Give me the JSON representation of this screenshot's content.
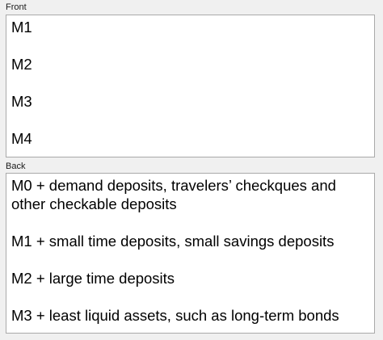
{
  "front": {
    "label": "Front",
    "lines": [
      "M1",
      "M2",
      "M3",
      "M4"
    ]
  },
  "back": {
    "label": "Back",
    "lines": [
      "M0 + demand deposits, travelers’ checkques and",
      "other checkable deposits",
      "M1 + small time deposits, small savings deposits",
      "M2 + large time deposits",
      "M3 + least liquid assets, such as long-term bonds"
    ]
  }
}
